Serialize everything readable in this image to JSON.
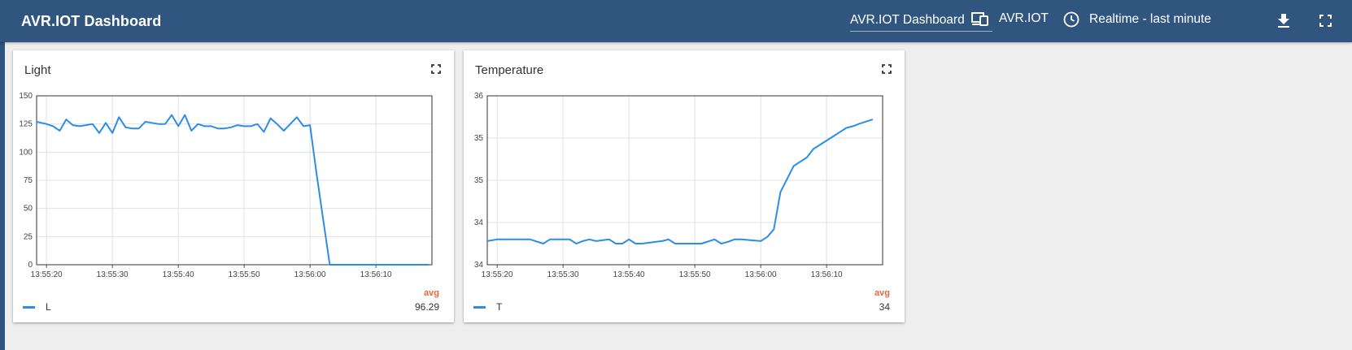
{
  "header": {
    "app_title": "AVR.IOT Dashboard",
    "dashboard_select": "AVR.IOT Dashboard",
    "device_label": "AVR.IOT",
    "time_range_label": "Realtime - last minute"
  },
  "cards": [
    {
      "title": "Light",
      "avg_label": "avg",
      "legend_name": "L",
      "legend_value": "96.29"
    },
    {
      "title": "Temperature",
      "avg_label": "avg",
      "legend_name": "T",
      "legend_value": "34"
    }
  ],
  "colors": {
    "header": "#305680",
    "series": "#2b8ee6",
    "avg": "#e2693f"
  },
  "chart_data": [
    {
      "type": "line",
      "title": "Light",
      "x_ticks": [
        "13:55:20",
        "13:55:30",
        "13:55:40",
        "13:55:50",
        "13:56:00",
        "13:56:10"
      ],
      "y_ticks": [
        "0",
        "25",
        "50",
        "75",
        "100",
        "125",
        "150"
      ],
      "ylim": [
        0,
        150
      ],
      "xlim": [
        18.5,
        78.5
      ],
      "grid": true,
      "legend": "bottom-left",
      "series": [
        {
          "name": "L",
          "x": [
            18.5,
            20,
            21,
            22,
            23,
            24,
            25,
            26,
            27,
            28,
            29,
            30,
            31,
            32,
            33,
            34,
            35,
            36,
            37,
            38,
            39,
            40,
            41,
            42,
            43,
            44,
            45,
            46,
            47,
            48,
            49,
            50,
            51,
            52,
            53,
            54,
            55,
            56,
            57,
            58,
            59,
            60,
            61,
            62,
            63,
            64,
            65,
            66,
            67,
            68,
            69,
            70,
            71,
            72,
            73,
            74,
            75,
            76,
            77,
            78
          ],
          "values": [
            127,
            125,
            123,
            119,
            129,
            124,
            123,
            124,
            125,
            117,
            126,
            117,
            131,
            122,
            121,
            121,
            127,
            126,
            125,
            125,
            133,
            123,
            133,
            119,
            125,
            123,
            123,
            121,
            121,
            122,
            124,
            123,
            123,
            125,
            118,
            130,
            125,
            119,
            125,
            131,
            123,
            124,
            80,
            40,
            0,
            0,
            0,
            0,
            0,
            0,
            0,
            0,
            0,
            0,
            0,
            0,
            0,
            0,
            0,
            0
          ]
        }
      ]
    },
    {
      "type": "line",
      "title": "Temperature",
      "x_ticks": [
        "13:55:20",
        "13:55:30",
        "13:55:40",
        "13:55:50",
        "13:56:00",
        "13:56:10"
      ],
      "y_ticks": [
        "34",
        "34",
        "35",
        "35",
        "36"
      ],
      "ylim": [
        34,
        36
      ],
      "xlim": [
        18.5,
        78.5
      ],
      "grid": true,
      "legend": "bottom-left",
      "series": [
        {
          "name": "T",
          "x": [
            18.5,
            20,
            25,
            27,
            28,
            30,
            31,
            32,
            33,
            34,
            35,
            37,
            38,
            39,
            40,
            41,
            42,
            44,
            45,
            46,
            47,
            48,
            49,
            51,
            53,
            54,
            55,
            56,
            57,
            60,
            61,
            62,
            63,
            65,
            67,
            68,
            70,
            71,
            72,
            73,
            74,
            75,
            77
          ],
          "values": [
            34.28,
            34.3,
            34.3,
            34.25,
            34.3,
            34.3,
            34.3,
            34.25,
            34.28,
            34.3,
            34.28,
            34.3,
            34.25,
            34.25,
            34.3,
            34.25,
            34.25,
            34.27,
            34.28,
            34.3,
            34.25,
            34.25,
            34.25,
            34.25,
            34.3,
            34.25,
            34.27,
            34.3,
            34.3,
            34.28,
            34.33,
            34.42,
            34.86,
            35.17,
            35.27,
            35.37,
            35.47,
            35.52,
            35.57,
            35.62,
            35.64,
            35.67,
            35.72
          ]
        }
      ]
    }
  ]
}
